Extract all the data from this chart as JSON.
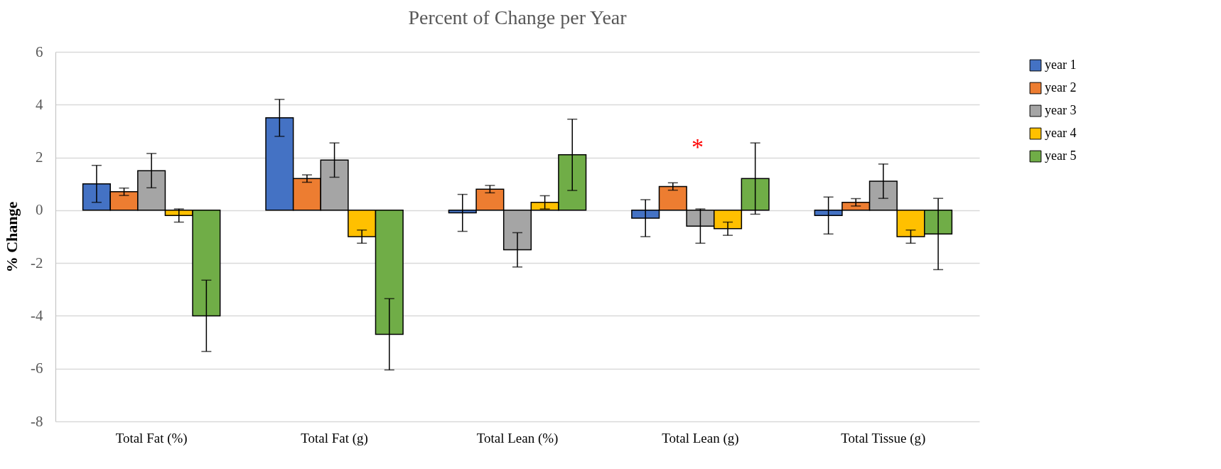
{
  "chart_data": {
    "type": "bar",
    "title": "Percent of Change per Year",
    "ylabel": "% Change",
    "categories": [
      "Total Fat (%)",
      "Total Fat (g)",
      "Total Lean (%)",
      "Total Lean (g)",
      "Total Tissue (g)"
    ],
    "series": [
      {
        "name": "year 1",
        "color": "#4472c4",
        "values": [
          1.0,
          3.5,
          -0.1,
          -0.3,
          -0.2
        ],
        "errors": [
          0.7,
          0.7,
          0.7,
          0.7,
          0.7
        ]
      },
      {
        "name": "year 2",
        "color": "#ed7d31",
        "values": [
          0.7,
          1.2,
          0.8,
          0.9,
          0.3
        ],
        "errors": [
          0.14,
          0.14,
          0.14,
          0.14,
          0.14
        ]
      },
      {
        "name": "year 3",
        "color": "#a5a5a5",
        "values": [
          1.5,
          1.9,
          -1.5,
          -0.6,
          1.1
        ],
        "errors": [
          0.65,
          0.65,
          0.65,
          0.65,
          0.65
        ]
      },
      {
        "name": "year 4",
        "color": "#ffc000",
        "values": [
          -0.2,
          -1.0,
          0.3,
          -0.7,
          -1.0
        ],
        "errors": [
          0.25,
          0.25,
          0.25,
          0.25,
          0.25
        ]
      },
      {
        "name": "year 5",
        "color": "#70ad47",
        "values": [
          -4.0,
          -4.7,
          2.1,
          1.2,
          -0.9
        ],
        "errors": [
          1.35,
          1.35,
          1.35,
          1.35,
          1.35
        ]
      }
    ],
    "ylim": [
      -8,
      6
    ],
    "yticks": [
      -8,
      -6,
      -4,
      -2,
      0,
      2,
      4,
      6
    ],
    "grid": "y",
    "legend": "right",
    "annotations": [
      "*"
    ]
  }
}
